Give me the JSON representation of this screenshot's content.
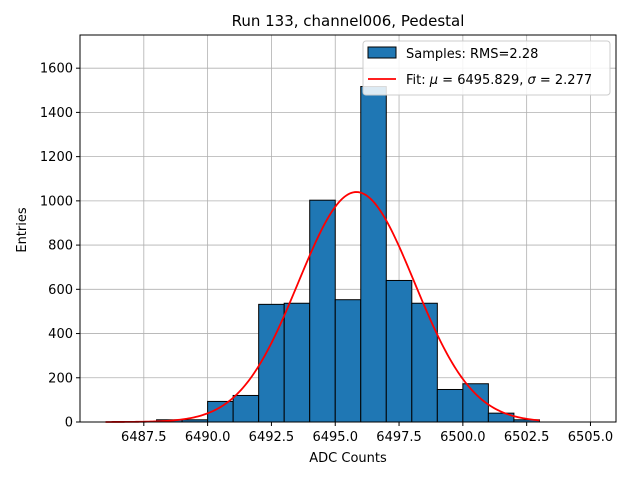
{
  "chart_data": {
    "type": "bar",
    "title": "Run 133, channel006, Pedestal",
    "xlabel": "ADC Counts",
    "ylabel": "Entries",
    "xlim": [
      6485.0,
      6506.0
    ],
    "ylim": [
      0,
      1750
    ],
    "grid": true,
    "legend_position": "top-right",
    "xticks": [
      6487.5,
      6490.0,
      6492.5,
      6495.0,
      6497.5,
      6500.0,
      6502.5,
      6505.0
    ],
    "xtick_labels": [
      "6487.5",
      "6490.0",
      "6492.5",
      "6495.0",
      "6497.5",
      "6500.0",
      "6502.5",
      "6505.0"
    ],
    "yticks": [
      0,
      200,
      400,
      600,
      800,
      1000,
      1200,
      1400,
      1600
    ],
    "ytick_labels": [
      "0",
      "200",
      "400",
      "600",
      "800",
      "1000",
      "1200",
      "1400",
      "1600"
    ],
    "bin_edges": [
      6488,
      6489,
      6490,
      6491,
      6492,
      6493,
      6494,
      6495,
      6496,
      6497,
      6498,
      6499,
      6500,
      6501,
      6502,
      6503
    ],
    "values": [
      10,
      10,
      93,
      120,
      532,
      537,
      1003,
      553,
      1517,
      640,
      537,
      147,
      173,
      40,
      10
    ],
    "series": [
      {
        "name": "Samples: RMS=2.28",
        "kind": "histogram",
        "color": "#1f77b4",
        "edgecolor": "#000000"
      },
      {
        "name_prefix": "Fit: ",
        "name_mu": "μ",
        "name_mid": " = 6495.829, ",
        "name_sigma": "σ",
        "name_suffix": " = 2.277",
        "kind": "gaussian",
        "color": "#ff0000",
        "amplitude": 1040,
        "mu": 6495.829,
        "sigma": 2.277,
        "x_range": [
          6486,
          6503
        ]
      }
    ]
  }
}
